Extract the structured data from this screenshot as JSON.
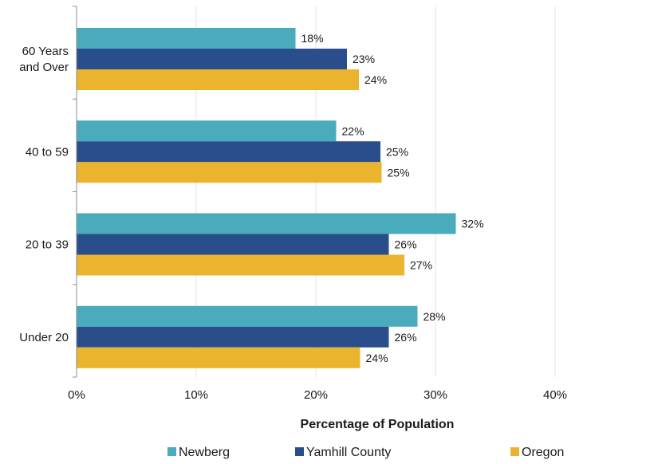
{
  "chart_data": {
    "type": "bar",
    "orientation": "horizontal",
    "title": "",
    "xlabel": "Percentage of Population",
    "ylabel": "",
    "xlim": [
      0,
      48
    ],
    "x_ticks": [
      0,
      10,
      20,
      30,
      40
    ],
    "x_tick_labels": [
      "0%",
      "10%",
      "20%",
      "30%",
      "40%"
    ],
    "grid": "vertical",
    "legend_position": "bottom",
    "categories": [
      "60 Years\nand Over",
      "40 to 59",
      "20 to 39",
      "Under 20"
    ],
    "series": [
      {
        "name": "Newberg",
        "color": "#4aabbd",
        "values": [
          18.3,
          21.7,
          31.7,
          28.5
        ],
        "labels": [
          "18%",
          "22%",
          "32%",
          "28%"
        ]
      },
      {
        "name": "Yamhill County",
        "color": "#2a4d8c",
        "values": [
          22.6,
          25.4,
          26.1,
          26.1
        ],
        "labels": [
          "23%",
          "25%",
          "26%",
          "26%"
        ]
      },
      {
        "name": "Oregon",
        "color": "#eab42f",
        "values": [
          23.6,
          25.5,
          27.4,
          23.7
        ],
        "labels": [
          "24%",
          "25%",
          "27%",
          "24%"
        ]
      }
    ]
  }
}
